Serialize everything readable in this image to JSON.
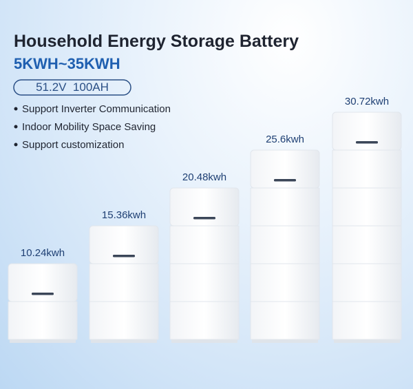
{
  "header": {
    "title": "Household Energy Storage Battery",
    "range": "5KWH~35KWH",
    "spec": "51.2V  100AH"
  },
  "features": [
    "Support Inverter Communication",
    "Indoor Mobility Space Saving",
    "Support customization"
  ],
  "batteries": [
    {
      "label": "10.24kwh"
    },
    {
      "label": "15.36kwh"
    },
    {
      "label": "20.48kwh"
    },
    {
      "label": "25.6kwh"
    },
    {
      "label": "30.72kwh"
    }
  ]
}
